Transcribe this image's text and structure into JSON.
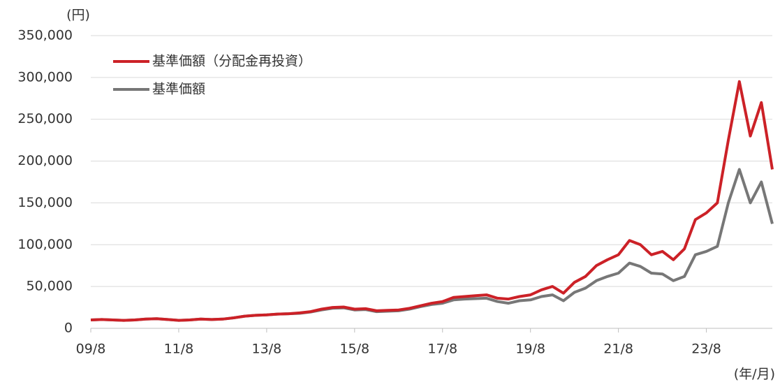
{
  "chart_data": {
    "type": "line",
    "y_unit_label": "(円)",
    "x_unit_label": "(年/月)",
    "categories": [
      "09/8",
      null,
      null,
      null,
      null,
      null,
      null,
      null,
      "11/8",
      null,
      null,
      null,
      null,
      null,
      null,
      null,
      "13/8",
      null,
      null,
      null,
      null,
      null,
      null,
      null,
      "15/8",
      null,
      null,
      null,
      null,
      null,
      null,
      null,
      "17/8",
      null,
      null,
      null,
      null,
      null,
      null,
      null,
      "19/8",
      null,
      null,
      null,
      null,
      null,
      null,
      null,
      "21/8",
      null,
      null,
      null,
      null,
      null,
      null,
      null,
      "23/8",
      null,
      null,
      null,
      null,
      null,
      null
    ],
    "series": [
      {
        "name": "基準価額（分配金再投資）",
        "color": "#cc2127",
        "values": [
          10000,
          10500,
          10000,
          9500,
          10000,
          11000,
          11500,
          10500,
          9500,
          10000,
          11000,
          10500,
          11000,
          12500,
          14500,
          15500,
          16000,
          17000,
          17500,
          18500,
          20000,
          23000,
          25000,
          25500,
          23000,
          23500,
          21000,
          21500,
          22000,
          24000,
          27000,
          30000,
          32000,
          37000,
          38000,
          39000,
          40000,
          36000,
          35000,
          38000,
          40000,
          46000,
          50000,
          42000,
          55000,
          62000,
          75000,
          82000,
          88000,
          105000,
          100000,
          88000,
          92000,
          82000,
          95000,
          130000,
          138000,
          150000,
          225000,
          295000,
          230000,
          270000,
          190000
        ]
      },
      {
        "name": "基準価額",
        "color": "#777777",
        "values": [
          10000,
          10500,
          10000,
          9500,
          10000,
          11000,
          11500,
          10500,
          9500,
          10000,
          11000,
          10500,
          11000,
          12500,
          14500,
          15500,
          16000,
          17000,
          17500,
          18000,
          19500,
          22000,
          24000,
          24500,
          22000,
          22500,
          20000,
          20500,
          21000,
          23000,
          26000,
          28500,
          30000,
          34000,
          35000,
          35500,
          36000,
          32000,
          30000,
          33000,
          34000,
          38000,
          40000,
          33000,
          43000,
          48000,
          57000,
          62000,
          66000,
          78000,
          74000,
          66000,
          65000,
          57000,
          62000,
          88000,
          92000,
          98000,
          150000,
          190000,
          150000,
          175000,
          125000
        ]
      }
    ],
    "ylim": [
      0,
      350000
    ],
    "yticks": [
      0,
      {
        "value": 50000,
        "label": "50,000"
      },
      {
        "value": 100000,
        "label": "100,000"
      },
      {
        "value": 150000,
        "label": "150,000"
      },
      {
        "value": 200000,
        "label": "200,000"
      },
      {
        "value": 250000,
        "label": "250,000"
      },
      {
        "value": 300000,
        "label": "300,000"
      },
      {
        "value": 350000,
        "label": "350,000"
      }
    ],
    "grid": true,
    "legend": "upper left"
  }
}
